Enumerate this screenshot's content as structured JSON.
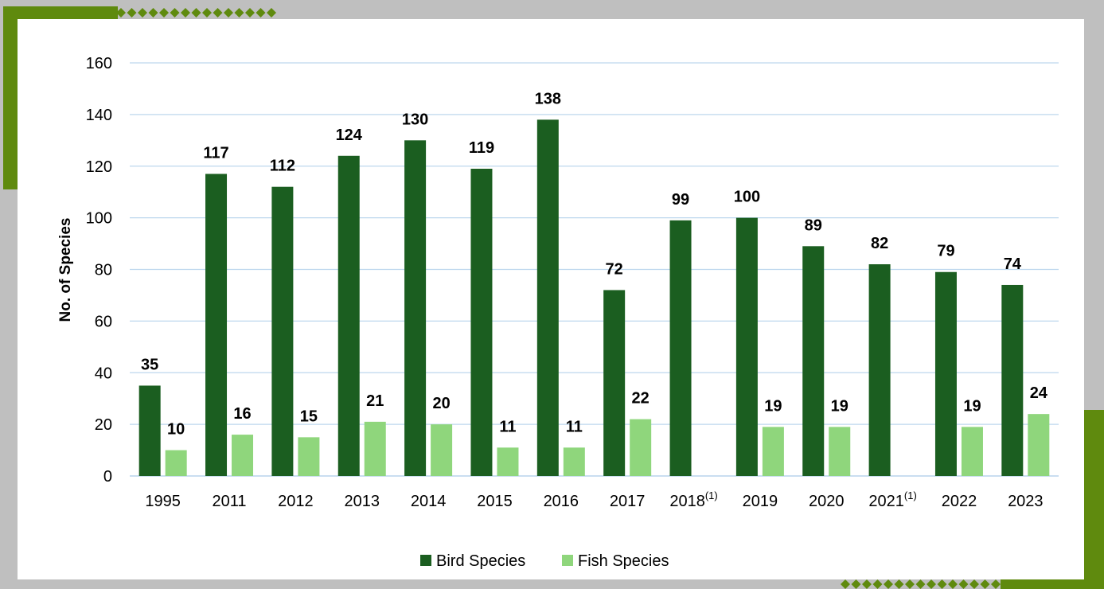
{
  "colors": {
    "frame_gray": "#bfbfbf",
    "panel": "#ffffff",
    "accent_green": "#5f8a0e",
    "bird": "#1b5e20",
    "fish": "#8fd67c",
    "grid": "#bdd7ee"
  },
  "chart_data": {
    "type": "bar",
    "title": "",
    "xlabel": "",
    "ylabel": "No. of Species",
    "ylim": [
      0,
      160
    ],
    "yticks": [
      0,
      20,
      40,
      60,
      80,
      100,
      120,
      140,
      160
    ],
    "grid": true,
    "legend_position": "bottom",
    "categories": [
      {
        "label": "1995",
        "sup": ""
      },
      {
        "label": "2011",
        "sup": ""
      },
      {
        "label": "2012",
        "sup": ""
      },
      {
        "label": "2013",
        "sup": ""
      },
      {
        "label": "2014",
        "sup": ""
      },
      {
        "label": "2015",
        "sup": ""
      },
      {
        "label": "2016",
        "sup": ""
      },
      {
        "label": "2017",
        "sup": ""
      },
      {
        "label": "2018",
        "sup": "(1)"
      },
      {
        "label": "2019",
        "sup": ""
      },
      {
        "label": "2020",
        "sup": ""
      },
      {
        "label": "2021",
        "sup": "(1)"
      },
      {
        "label": "2022",
        "sup": ""
      },
      {
        "label": "2023",
        "sup": ""
      }
    ],
    "series": [
      {
        "name": "Bird Species",
        "color": "#1b5e20",
        "values": [
          35,
          117,
          112,
          124,
          130,
          119,
          138,
          72,
          99,
          100,
          89,
          82,
          79,
          74
        ]
      },
      {
        "name": "Fish Species",
        "color": "#8fd67c",
        "values": [
          10,
          16,
          15,
          21,
          20,
          11,
          11,
          22,
          null,
          19,
          19,
          null,
          19,
          24
        ]
      }
    ]
  }
}
